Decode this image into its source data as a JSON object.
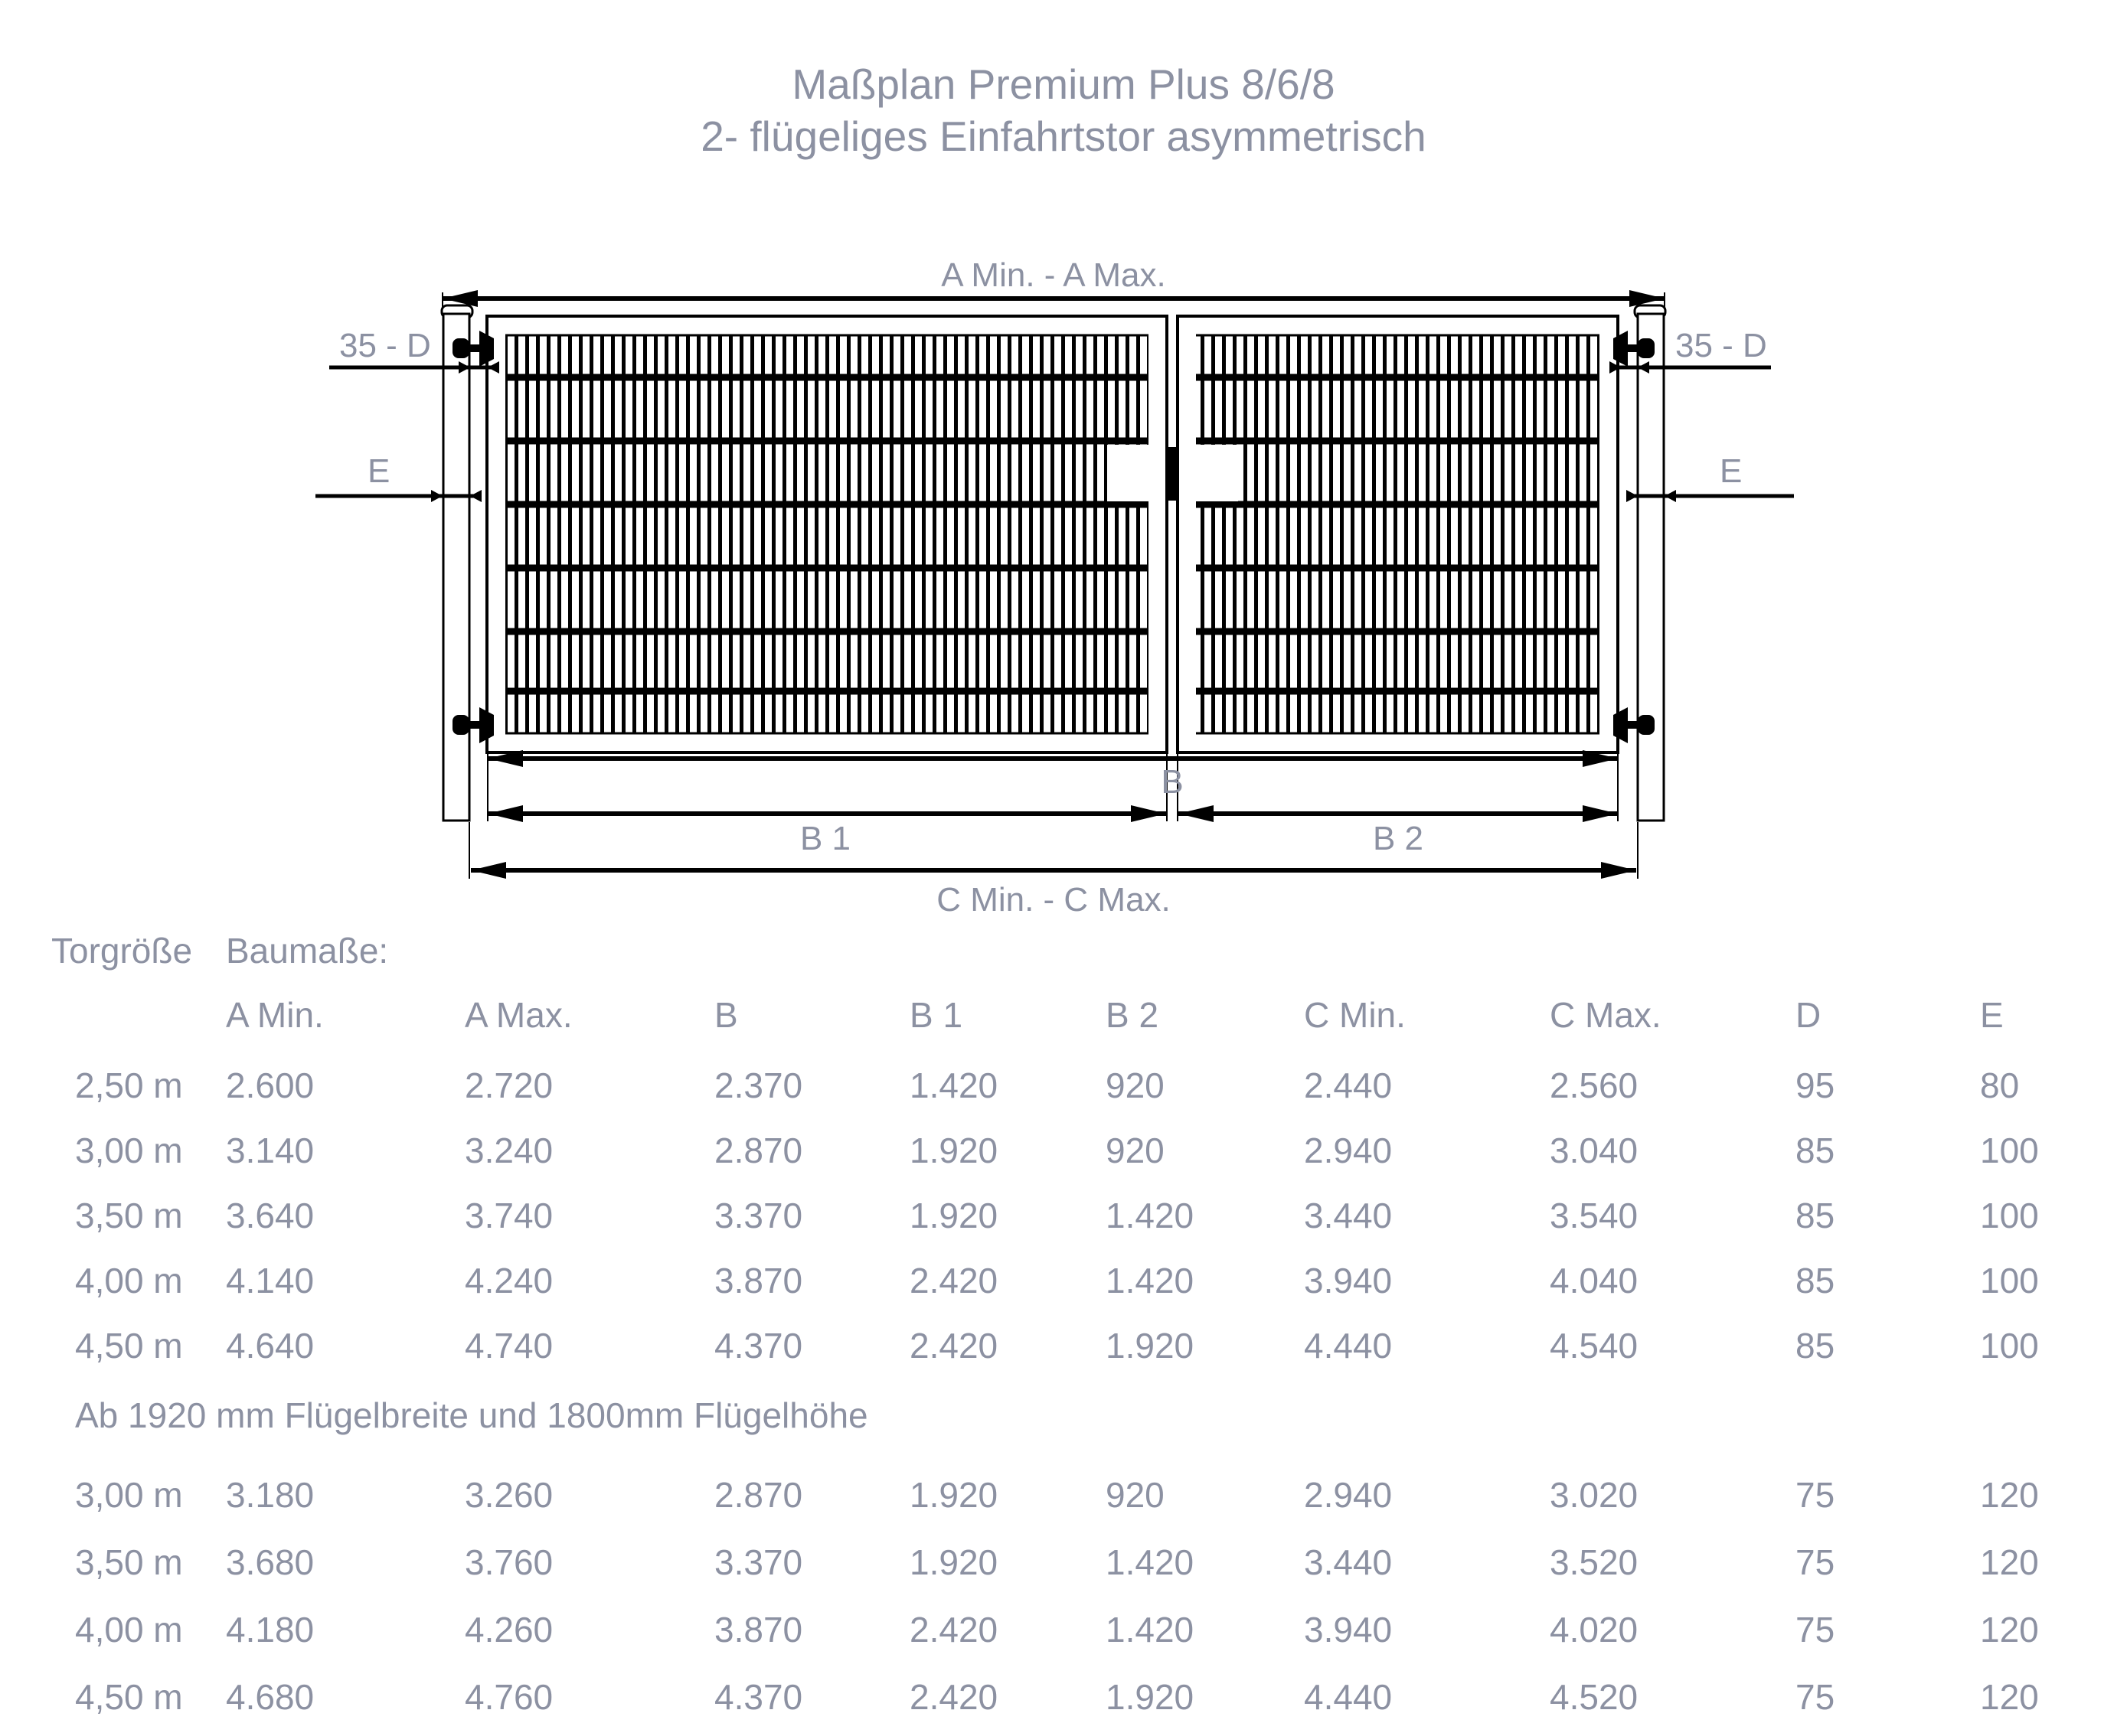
{
  "title": {
    "line1": "Maßplan Premium Plus 8/6/8",
    "line2": "2- flügeliges Einfahrtstor asymmetrisch"
  },
  "colors": {
    "label_text": "#8c91a2",
    "line": "#000000",
    "background": "#ffffff"
  },
  "diagram": {
    "labels": {
      "a": "A Min. - A Max.",
      "d_left": "35 - D",
      "d_right": "35 - D",
      "e_left": "E",
      "e_right": "E",
      "b": "B",
      "b1": "B 1",
      "b2": "B 2",
      "c": "C Min. - C Max."
    }
  },
  "table": {
    "header_group": {
      "col1": "Torgröße",
      "col2": "Baumaße:"
    },
    "columns": [
      "",
      "A Min.",
      "A Max.",
      "B",
      "B 1",
      "B 2",
      "C Min.",
      "C Max.",
      "D",
      "E"
    ],
    "rows_standard": [
      [
        "2,50 m",
        "2.600",
        "2.720",
        "2.370",
        "1.420",
        "920",
        "2.440",
        "2.560",
        "95",
        "80"
      ],
      [
        "3,00 m",
        "3.140",
        "3.240",
        "2.870",
        "1.920",
        "920",
        "2.940",
        "3.040",
        "85",
        "100"
      ],
      [
        "3,50 m",
        "3.640",
        "3.740",
        "3.370",
        "1.920",
        "1.420",
        "3.440",
        "3.540",
        "85",
        "100"
      ],
      [
        "4,00 m",
        "4.140",
        "4.240",
        "3.870",
        "2.420",
        "1.420",
        "3.940",
        "4.040",
        "85",
        "100"
      ],
      [
        "4,50 m",
        "4.640",
        "4.740",
        "4.370",
        "2.420",
        "1.920",
        "4.440",
        "4.540",
        "85",
        "100"
      ]
    ],
    "note": "Ab 1920 mm Flügelbreite und 1800mm Flügelhöhe",
    "rows_large": [
      [
        "3,00 m",
        "3.180",
        "3.260",
        "2.870",
        "1.920",
        "920",
        "2.940",
        "3.020",
        "75",
        "120"
      ],
      [
        "3,50 m",
        "3.680",
        "3.760",
        "3.370",
        "1.920",
        "1.420",
        "3.440",
        "3.520",
        "75",
        "120"
      ],
      [
        "4,00 m",
        "4.180",
        "4.260",
        "3.870",
        "2.420",
        "1.420",
        "3.940",
        "4.020",
        "75",
        "120"
      ],
      [
        "4,50 m",
        "4.680",
        "4.760",
        "4.370",
        "2.420",
        "1.920",
        "4.440",
        "4.520",
        "75",
        "120"
      ]
    ]
  }
}
